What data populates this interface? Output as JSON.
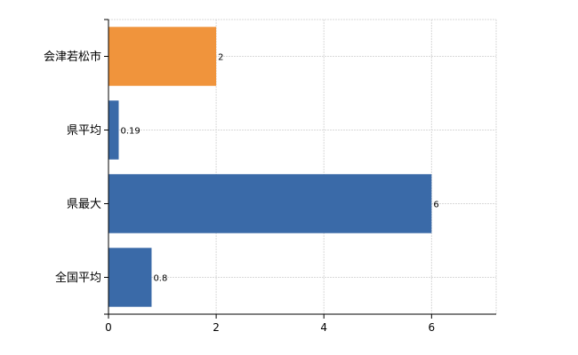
{
  "chart_data": {
    "type": "bar",
    "orientation": "horizontal",
    "categories": [
      "会津若松市",
      "県平均",
      "県最大",
      "全国平均"
    ],
    "values": [
      2,
      0.19,
      6,
      0.8
    ],
    "value_labels": [
      "2",
      "0.19",
      "6",
      "0.8"
    ],
    "bar_colors": [
      "#f0943c",
      "#3a6aa8",
      "#3a6aa8",
      "#3a6aa8"
    ],
    "x_ticks": [
      0,
      2,
      4,
      6
    ],
    "x_tick_labels": [
      "0",
      "2",
      "4",
      "6"
    ],
    "xlim": [
      0,
      7.2
    ],
    "title": "",
    "xlabel": "",
    "ylabel": "",
    "grid": true,
    "legend": "none"
  }
}
